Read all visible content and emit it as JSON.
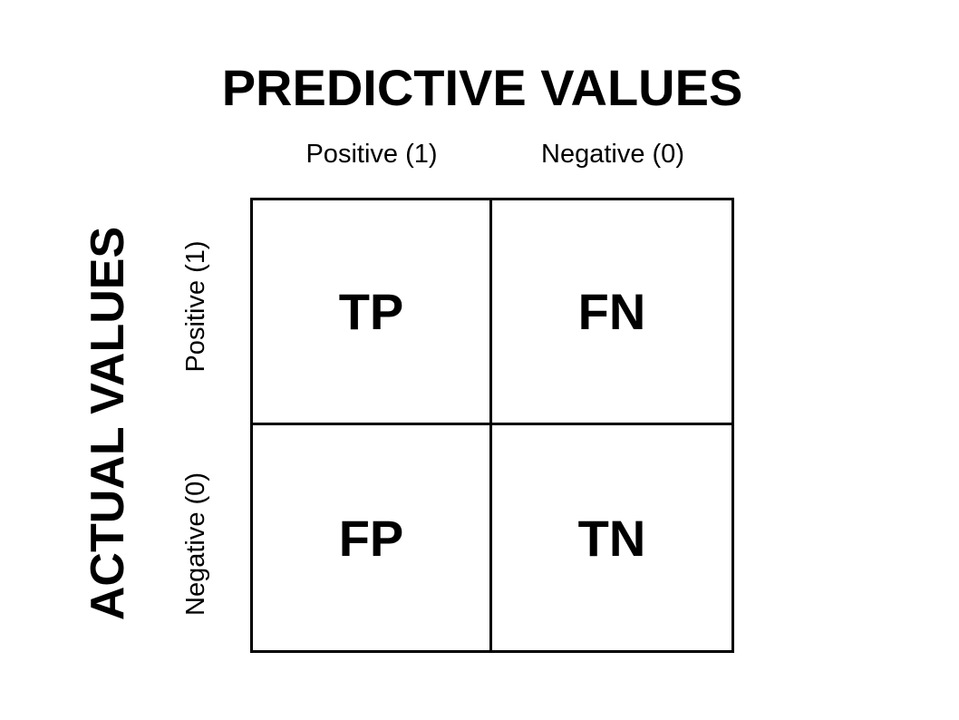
{
  "title": "PREDICTIVE VALUES",
  "side_title": "ACTUAL VALUES",
  "columns": [
    "Positive (1)",
    "Negative (0)"
  ],
  "rows": [
    "Positive (1)",
    "Negative (0)"
  ],
  "cells": [
    [
      "TP",
      "FN"
    ],
    [
      "FP",
      "TN"
    ]
  ]
}
